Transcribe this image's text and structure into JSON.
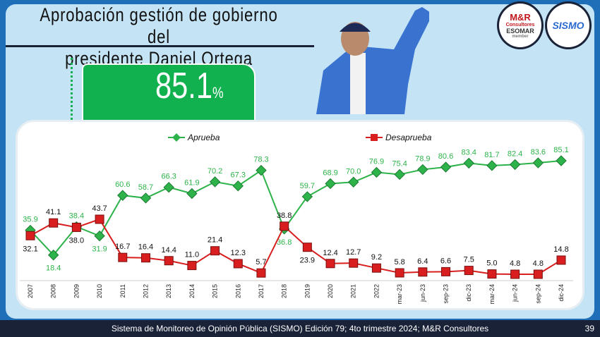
{
  "header": {
    "title_line1": "Aprobación gestión de gobierno del",
    "title_line2": "presidente Daniel Ortega",
    "highlight_value": "85.1",
    "highlight_unit": "%"
  },
  "logos": {
    "mr_name": "M&R",
    "mr_sub": "Consultores",
    "mr_esomar": "ESOMAR",
    "mr_member": "member",
    "sismo": "SISMO"
  },
  "footer": {
    "text": "Sistema de Monitoreo de Opinión Pública (SISMO) Edición 79; 4to trimestre 2024; M&R Consultores",
    "page": "39"
  },
  "colors": {
    "aprueba": "#2db34a",
    "desaprueba": "#d81e1e"
  },
  "chart_data": {
    "type": "line",
    "title": "Aprobación gestión de gobierno del presidente Daniel Ortega",
    "categories": [
      "2007",
      "2008",
      "2009",
      "2010",
      "2011",
      "2012",
      "2013",
      "2014",
      "2015",
      "2016",
      "2017",
      "2018",
      "2019",
      "2020",
      "2021",
      "2022",
      "mar-23",
      "jun-23",
      "sep-23",
      "dic-23",
      "mar-24",
      "jun-24",
      "sep-24",
      "dic-24"
    ],
    "series": [
      {
        "name": "Aprueba",
        "values": [
          35.9,
          18.4,
          38.4,
          31.9,
          60.6,
          58.7,
          66.3,
          61.9,
          70.2,
          67.3,
          78.3,
          36.8,
          59.7,
          68.9,
          70.0,
          76.9,
          75.4,
          78.9,
          80.6,
          83.4,
          81.7,
          82.4,
          83.6,
          85.1
        ]
      },
      {
        "name": "Desaprueba",
        "values": [
          32.1,
          41.1,
          38.0,
          43.7,
          16.7,
          16.4,
          14.4,
          11.0,
          21.4,
          12.3,
          5.7,
          38.8,
          23.9,
          12.4,
          12.7,
          9.2,
          5.8,
          6.4,
          6.6,
          7.5,
          5.0,
          4.8,
          4.8,
          14.8
        ]
      }
    ],
    "legend": "top",
    "grid": false,
    "xlabel": "",
    "ylabel": ""
  }
}
